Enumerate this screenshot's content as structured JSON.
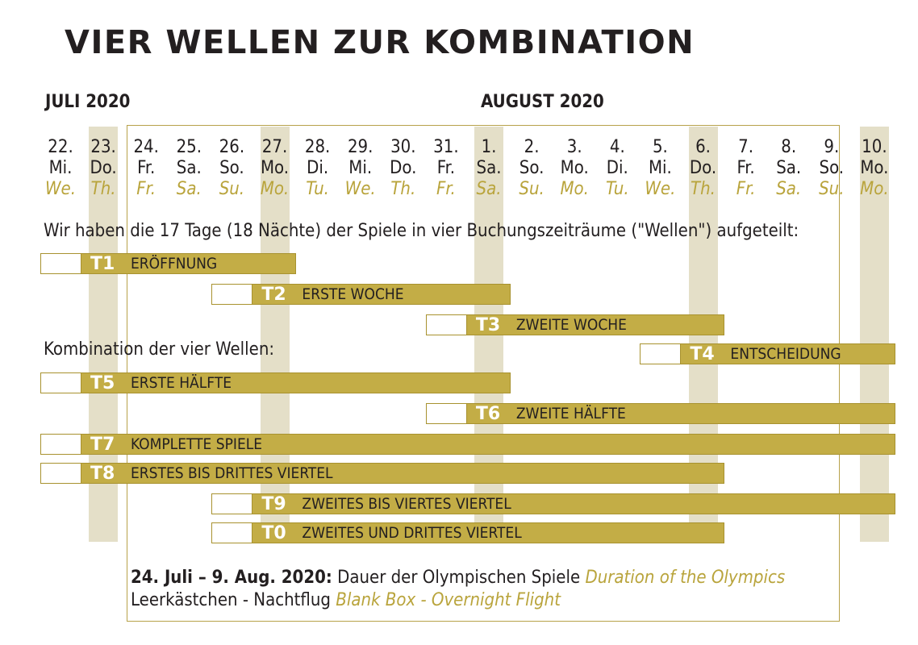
{
  "title": "VIER WELLEN ZUR KOMBINATION",
  "months": [
    {
      "label": "JULI 2020",
      "day_index": 0
    },
    {
      "label": "AUGUST 2020",
      "day_index": 10
    }
  ],
  "colors": {
    "accent": "#c3ad46",
    "accent_text": "#b9a43c",
    "stripe": "#e4dfc8",
    "frame": "#b7a24a",
    "text": "#231f20"
  },
  "days": [
    {
      "num": "22.",
      "de": "Mi.",
      "en": "We.",
      "shaded": false
    },
    {
      "num": "23.",
      "de": "Do.",
      "en": "Th.",
      "shaded": true
    },
    {
      "num": "24.",
      "de": "Fr.",
      "en": "Fr.",
      "shaded": false
    },
    {
      "num": "25.",
      "de": "Sa.",
      "en": "Sa.",
      "shaded": false
    },
    {
      "num": "26.",
      "de": "So.",
      "en": "Su.",
      "shaded": false
    },
    {
      "num": "27.",
      "de": "Mo.",
      "en": "Mo.",
      "shaded": true
    },
    {
      "num": "28.",
      "de": "Di.",
      "en": "Tu.",
      "shaded": false
    },
    {
      "num": "29.",
      "de": "Mi.",
      "en": "We.",
      "shaded": false
    },
    {
      "num": "30.",
      "de": "Do.",
      "en": "Th.",
      "shaded": false
    },
    {
      "num": "31.",
      "de": "Fr.",
      "en": "Fr.",
      "shaded": false
    },
    {
      "num": "1.",
      "de": "Sa.",
      "en": "Sa.",
      "shaded": true
    },
    {
      "num": "2.",
      "de": "So.",
      "en": "Su.",
      "shaded": false
    },
    {
      "num": "3.",
      "de": "Mo.",
      "en": "Mo.",
      "shaded": false
    },
    {
      "num": "4.",
      "de": "Di.",
      "en": "Tu.",
      "shaded": false
    },
    {
      "num": "5.",
      "de": "Mi.",
      "en": "We.",
      "shaded": false
    },
    {
      "num": "6.",
      "de": "Do.",
      "en": "Th.",
      "shaded": true
    },
    {
      "num": "7.",
      "de": "Fr.",
      "en": "Fr.",
      "shaded": false
    },
    {
      "num": "8.",
      "de": "Sa.",
      "en": "Sa.",
      "shaded": false
    },
    {
      "num": "9.",
      "de": "So.",
      "en": "Su.",
      "shaded": false
    },
    {
      "num": "10.",
      "de": "Mo.",
      "en": "Mo.",
      "shaded": true
    }
  ],
  "intro_text": "Wir haben die 17 Tage (18 Nächte) der Spiele in vier Buchungszeiträume (\"Wellen\") aufgeteilt:",
  "combination_text": "Kombination der vier Wellen:",
  "waves": [
    {
      "code": "T1",
      "label": "ERÖFFNUNG",
      "start_day": 0,
      "end_day": 5.5
    },
    {
      "code": "T2",
      "label": "ERSTE WOCHE",
      "start_day": 4,
      "end_day": 10.5
    },
    {
      "code": "T3",
      "label": "ZWEITE WOCHE",
      "start_day": 9,
      "end_day": 15.5
    },
    {
      "code": "T4",
      "label": "ENTSCHEIDUNG",
      "start_day": 14,
      "end_day": 19.5
    },
    {
      "code": "T5",
      "label": "ERSTE HÄLFTE",
      "start_day": 0,
      "end_day": 10.5
    },
    {
      "code": "T6",
      "label": "ZWEITE HÄLFTE",
      "start_day": 9,
      "end_day": 19.5
    },
    {
      "code": "T7",
      "label": "KOMPLETTE SPIELE",
      "start_day": 0,
      "end_day": 19.5
    },
    {
      "code": "T8",
      "label": "ERSTES BIS DRITTES VIERTEL",
      "start_day": 0,
      "end_day": 15.5
    },
    {
      "code": "T9",
      "label": "ZWEITES BIS VIERTES VIERTEL",
      "start_day": 4,
      "end_day": 19.5
    },
    {
      "code": "T0",
      "label": "ZWEITES UND DRITTES VIERTEL",
      "start_day": 4,
      "end_day": 15.5
    }
  ],
  "footer": {
    "line1_bold": "24. Juli – 9. Aug. 2020:",
    "line1_de": "Dauer der Olympischen Spiele",
    "line1_en": "Duration of the Olympics",
    "line2_de": "Leerkästchen - Nachtflug",
    "line2_en": "Blank Box - Overnight Flight"
  }
}
